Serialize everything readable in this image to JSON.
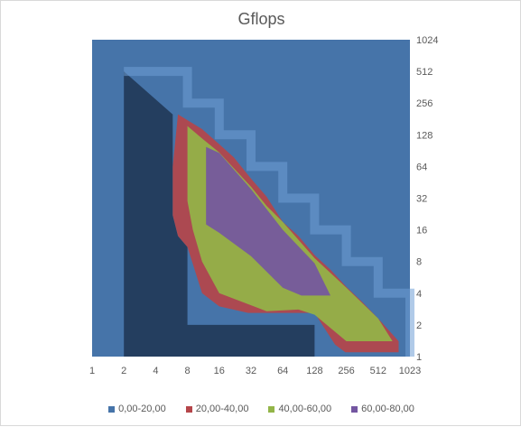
{
  "chart_data": {
    "type": "area",
    "title": "Gflops",
    "x_ticks": [
      "1",
      "2",
      "4",
      "8",
      "16",
      "32",
      "64",
      "128",
      "256",
      "512",
      "1023"
    ],
    "y_ticks": [
      "1",
      "2",
      "4",
      "8",
      "16",
      "32",
      "64",
      "128",
      "256",
      "512",
      "1024"
    ],
    "x_scale": "log2",
    "y_scale": "log2",
    "y_axis_side": "right",
    "grid": false,
    "legend_position": "bottom",
    "series": [
      {
        "name": "0,00-20,00",
        "color": "#4674a9",
        "region": [
          [
            1,
            1
          ],
          [
            1,
            1024
          ],
          [
            1023,
            1024
          ],
          [
            1023,
            1
          ]
        ]
      },
      {
        "name": "20,00-40,00",
        "color": "#b5454a",
        "region": [
          [
            5.8,
            22
          ],
          [
            5.8,
            64
          ],
          [
            6.5,
            200
          ],
          [
            11,
            145
          ],
          [
            16,
            104
          ],
          [
            22,
            78
          ],
          [
            32,
            49
          ],
          [
            45,
            33
          ],
          [
            64,
            19
          ],
          [
            90,
            14
          ],
          [
            128,
            9.2
          ],
          [
            181,
            6.7
          ],
          [
            256,
            4.6
          ],
          [
            362,
            3.3
          ],
          [
            512,
            2.3
          ],
          [
            800,
            1.4
          ],
          [
            800,
            1.1
          ],
          [
            250,
            1.1
          ],
          [
            200,
            1.3
          ],
          [
            128,
            2.6
          ],
          [
            30,
            2.6
          ],
          [
            16,
            3
          ],
          [
            11,
            4
          ],
          [
            8,
            11
          ],
          [
            6.5,
            14
          ]
        ]
      },
      {
        "name": "40,00-60,00",
        "color": "#93b548",
        "region": [
          [
            8,
            30
          ],
          [
            8,
            155
          ],
          [
            11,
            118
          ],
          [
            16,
            87
          ],
          [
            32,
            41
          ],
          [
            45,
            27
          ],
          [
            64,
            19
          ],
          [
            128,
            8.6
          ],
          [
            256,
            4.5
          ],
          [
            512,
            2.3
          ],
          [
            700,
            1.4
          ],
          [
            256,
            1.4
          ],
          [
            128,
            2.5
          ],
          [
            90,
            2.8
          ],
          [
            45,
            2.7
          ],
          [
            16,
            4
          ],
          [
            11,
            8
          ],
          [
            9,
            16
          ]
        ]
      },
      {
        "name": "60,00-80,00",
        "color": "#7456a1",
        "region": [
          [
            12,
            18
          ],
          [
            12,
            98
          ],
          [
            16,
            86
          ],
          [
            32,
            39
          ],
          [
            64,
            16
          ],
          [
            128,
            7.7
          ],
          [
            181,
            3.8
          ],
          [
            96,
            3.8
          ],
          [
            64,
            4.5
          ],
          [
            32,
            9
          ],
          [
            16,
            15
          ]
        ]
      }
    ]
  },
  "legend": {
    "items": [
      {
        "label": "0,00-20,00",
        "color": "#4674a9"
      },
      {
        "label": "20,00-40,00",
        "color": "#b5454a"
      },
      {
        "label": "40,00-60,00",
        "color": "#93b548"
      },
      {
        "label": "60,00-80,00",
        "color": "#7456a1"
      }
    ]
  }
}
